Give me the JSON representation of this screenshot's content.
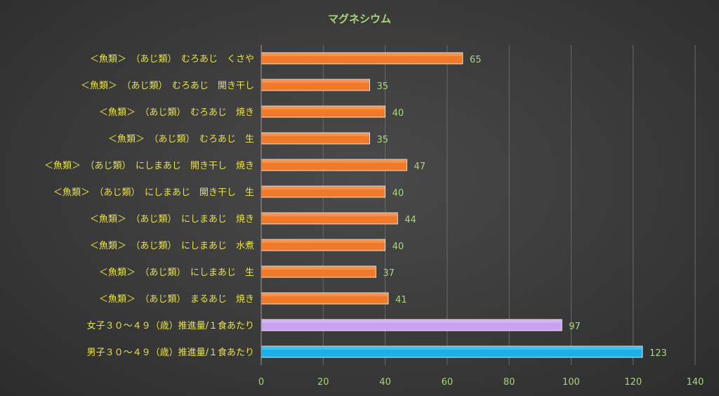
{
  "chart_data": {
    "type": "bar",
    "orientation": "horizontal",
    "title": "マグネシウム",
    "xlim": [
      0,
      140
    ],
    "ticks": [
      0,
      20,
      40,
      60,
      80,
      100,
      120,
      140
    ],
    "grid": true,
    "categories": [
      "＜魚類＞　（あじ類）　むろあじ　くさや",
      "＜魚類＞　（あじ類）　むろあじ　開き干し",
      "＜魚類＞　（あじ類）　むろあじ　焼き",
      "＜魚類＞　（あじ類）　むろあじ　生",
      "＜魚類＞　（あじ類）　にしまあじ　開き干し　焼き",
      "＜魚類＞　（あじ類）　にしまあじ　開き干し　生",
      "＜魚類＞　（あじ類）　にしまあじ　焼き",
      "＜魚類＞　（あじ類）　にしまあじ　水煮",
      "＜魚類＞　（あじ類）　にしまあじ　生",
      "＜魚類＞　（あじ類）　まるあじ　焼き",
      "女子３０～４９（歳）推進量/１食あたり",
      "男子３０～４９（歳）推進量/１食あたり"
    ],
    "values": [
      65,
      35,
      40,
      35,
      47,
      40,
      44,
      40,
      37,
      41,
      97,
      123
    ],
    "bar_colors": [
      "#f07a2a",
      "#f07a2a",
      "#f07a2a",
      "#f07a2a",
      "#f07a2a",
      "#f07a2a",
      "#f07a2a",
      "#f07a2a",
      "#f07a2a",
      "#f07a2a",
      "#c8a2f0",
      "#1ab0e8"
    ]
  }
}
